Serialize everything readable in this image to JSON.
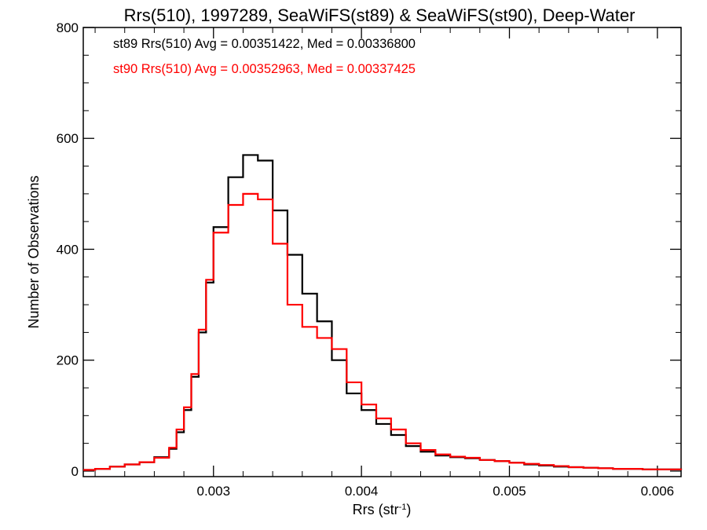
{
  "chart_data": {
    "type": "line",
    "title": "Rrs(510), 1997289, SeaWiFS(st89) & SeaWiFS(st90), Deep-Water",
    "xlabel": "Rrs (str",
    "xlabel_sup": "-1",
    "xlabel_end": ")",
    "ylabel": "Number of Observations",
    "xlim": [
      0.00212,
      0.00616
    ],
    "ylim": [
      -10,
      800
    ],
    "x_ticks": [
      {
        "value": 0.003,
        "label": "0.003"
      },
      {
        "value": 0.004,
        "label": "0.004"
      },
      {
        "value": 0.005,
        "label": "0.005"
      },
      {
        "value": 0.006,
        "label": "0.006"
      }
    ],
    "y_ticks": [
      {
        "value": 0,
        "label": "0"
      },
      {
        "value": 200,
        "label": "200"
      },
      {
        "value": 400,
        "label": "400"
      },
      {
        "value": 600,
        "label": "600"
      },
      {
        "value": 800,
        "label": "800"
      }
    ],
    "annotations": [
      {
        "text": "st89 Rrs(510) Avg = 0.00351422, Med = 0.00336800",
        "color": "#000000"
      },
      {
        "text": "st90 Rrs(510) Avg = 0.00352963, Med = 0.00337425",
        "color": "#ff0000"
      }
    ],
    "series": [
      {
        "color": "#000000",
        "points": [
          [
            0.00212,
            2
          ],
          [
            0.0022,
            4
          ],
          [
            0.0023,
            8
          ],
          [
            0.0024,
            12
          ],
          [
            0.0025,
            16
          ],
          [
            0.0026,
            25
          ],
          [
            0.0027,
            40
          ],
          [
            0.00275,
            70
          ],
          [
            0.0028,
            110
          ],
          [
            0.00285,
            170
          ],
          [
            0.0029,
            250
          ],
          [
            0.00295,
            340
          ],
          [
            0.003,
            440
          ],
          [
            0.0031,
            530
          ],
          [
            0.0032,
            570
          ],
          [
            0.0033,
            560
          ],
          [
            0.0034,
            470
          ],
          [
            0.0035,
            390
          ],
          [
            0.0036,
            320
          ],
          [
            0.0037,
            270
          ],
          [
            0.0038,
            200
          ],
          [
            0.0039,
            140
          ],
          [
            0.004,
            110
          ],
          [
            0.0041,
            85
          ],
          [
            0.0042,
            65
          ],
          [
            0.0043,
            45
          ],
          [
            0.0044,
            35
          ],
          [
            0.0045,
            28
          ],
          [
            0.0046,
            25
          ],
          [
            0.0047,
            23
          ],
          [
            0.0048,
            20
          ],
          [
            0.0049,
            18
          ],
          [
            0.005,
            15
          ],
          [
            0.0051,
            12
          ],
          [
            0.0052,
            10
          ],
          [
            0.0053,
            8
          ],
          [
            0.0054,
            7
          ],
          [
            0.0055,
            6
          ],
          [
            0.0056,
            5
          ],
          [
            0.0057,
            4
          ],
          [
            0.0058,
            4
          ],
          [
            0.0059,
            3
          ],
          [
            0.006,
            3
          ],
          [
            0.00616,
            2
          ]
        ]
      },
      {
        "color": "#ff0000",
        "points": [
          [
            0.00212,
            2
          ],
          [
            0.0022,
            4
          ],
          [
            0.0023,
            8
          ],
          [
            0.0024,
            12
          ],
          [
            0.0025,
            16
          ],
          [
            0.0026,
            24
          ],
          [
            0.0027,
            42
          ],
          [
            0.00275,
            75
          ],
          [
            0.0028,
            115
          ],
          [
            0.00285,
            175
          ],
          [
            0.0029,
            255
          ],
          [
            0.00295,
            345
          ],
          [
            0.003,
            430
          ],
          [
            0.0031,
            480
          ],
          [
            0.0032,
            500
          ],
          [
            0.0033,
            490
          ],
          [
            0.0034,
            410
          ],
          [
            0.0035,
            300
          ],
          [
            0.0036,
            260
          ],
          [
            0.0037,
            240
          ],
          [
            0.0038,
            220
          ],
          [
            0.0039,
            160
          ],
          [
            0.004,
            120
          ],
          [
            0.0041,
            95
          ],
          [
            0.0042,
            75
          ],
          [
            0.0043,
            50
          ],
          [
            0.0044,
            38
          ],
          [
            0.0045,
            30
          ],
          [
            0.0046,
            26
          ],
          [
            0.0047,
            24
          ],
          [
            0.0048,
            20
          ],
          [
            0.0049,
            18
          ],
          [
            0.005,
            15
          ],
          [
            0.0051,
            13
          ],
          [
            0.0052,
            11
          ],
          [
            0.0053,
            9
          ],
          [
            0.0054,
            7
          ],
          [
            0.0055,
            6
          ],
          [
            0.0056,
            5
          ],
          [
            0.0057,
            4
          ],
          [
            0.0058,
            4
          ],
          [
            0.0059,
            3
          ],
          [
            0.006,
            3
          ],
          [
            0.00616,
            2
          ]
        ]
      }
    ]
  }
}
